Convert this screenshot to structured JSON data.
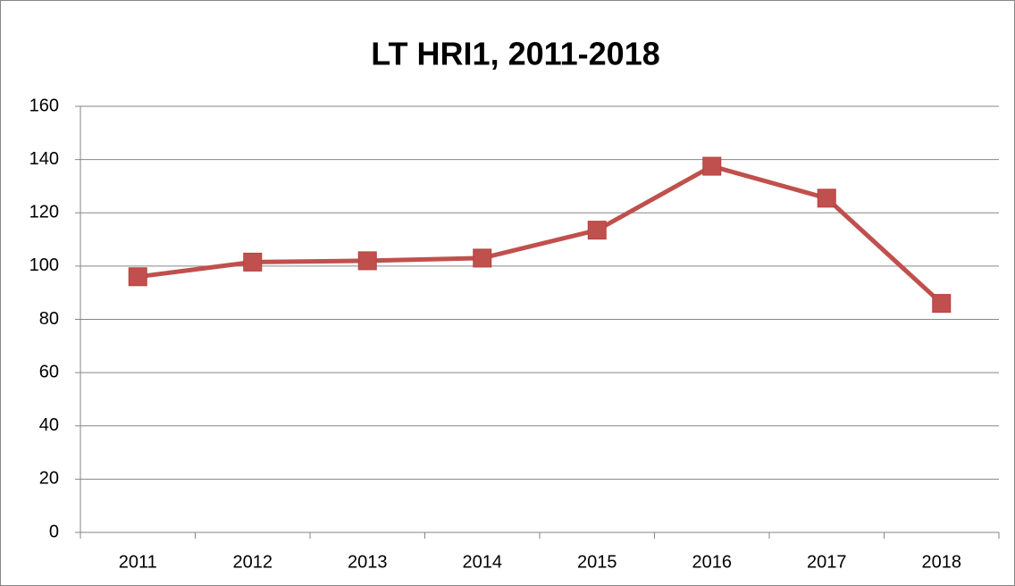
{
  "chart_data": {
    "type": "line",
    "title": "LT HRI1, 2011-2018",
    "categories": [
      "2011",
      "2012",
      "2013",
      "2014",
      "2015",
      "2016",
      "2017",
      "2018"
    ],
    "values": [
      96,
      101.5,
      102,
      103,
      113.5,
      137.5,
      125.5,
      86
    ],
    "color": "#c0504d",
    "ylim": [
      0,
      160
    ],
    "yticks": [
      0,
      20,
      40,
      60,
      80,
      100,
      120,
      140,
      160
    ],
    "grid": true
  }
}
